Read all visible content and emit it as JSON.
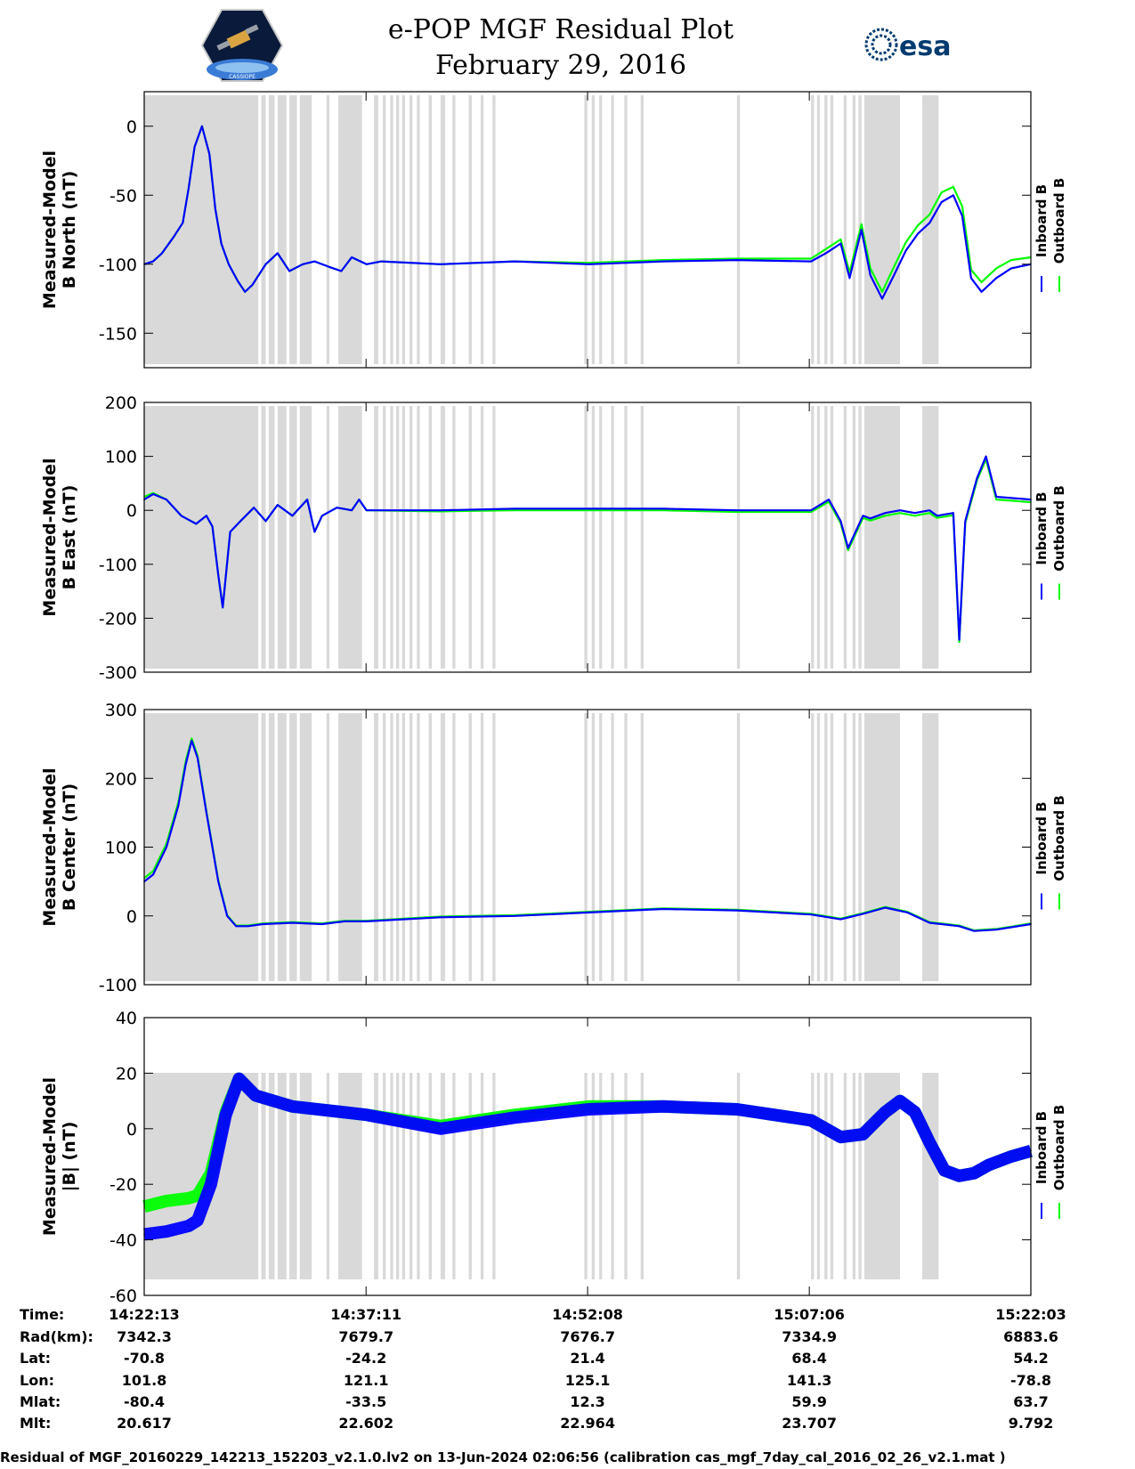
{
  "title": {
    "line1": "e-POP MGF Residual Plot",
    "line2": "February 29, 2016"
  },
  "logos": {
    "left": {
      "icon": "satellite-hexagon-logo",
      "text": "CASSIOPE"
    },
    "right": {
      "icon": "esa-logo",
      "text": "esa",
      "color": "#003b6f"
    }
  },
  "colors": {
    "inboard": "#0000ff",
    "outboard": "#00ff00",
    "shade": "#d9d9d9"
  },
  "legend": {
    "inboard": "Inboard B",
    "outboard": "Outboard B"
  },
  "footer": "Residual of MGF_20160229_142213_152203_v2.1.0.lv2 on 13-Jun-2024 02:06:56 (calibration cas_mgf_7day_cal_2016_02_26_v2.1.mat )",
  "ephemeris": {
    "labels": [
      "Time:",
      "Rad(km):",
      "Lat:",
      "Lon:",
      "Mlat:",
      "Mlt:"
    ],
    "columns": [
      [
        "14:22:13",
        "7342.3",
        "-70.8",
        "101.8",
        "-80.4",
        "20.617"
      ],
      [
        "14:37:11",
        "7679.7",
        "-24.2",
        "121.1",
        "-33.5",
        "22.602"
      ],
      [
        "14:52:08",
        "7676.7",
        "21.4",
        "125.1",
        "12.3",
        "22.964"
      ],
      [
        "15:07:06",
        "7334.9",
        "68.4",
        "141.3",
        "59.9",
        "23.707"
      ],
      [
        "15:22:03",
        "6883.6",
        "54.2",
        "-78.8",
        "63.7",
        "9.792"
      ]
    ]
  },
  "chart_data": {
    "type": "line",
    "x_unit": "minutes since 14:22:13",
    "x_range": [
      0,
      59.83
    ],
    "x_tick_labels": [
      "14:22:13",
      "14:37:11",
      "14:52:08",
      "15:07:06",
      "15:22:03"
    ],
    "shaded_intervals": [
      [
        0,
        7.7
      ],
      [
        7.9,
        8.2
      ],
      [
        8.4,
        8.8
      ],
      [
        9.0,
        9.6
      ],
      [
        9.8,
        10.3
      ],
      [
        10.5,
        11.3
      ],
      [
        12.3,
        12.5
      ],
      [
        13.1,
        14.7
      ],
      [
        15.5,
        15.8
      ],
      [
        16.1,
        16.3
      ],
      [
        16.6,
        16.8
      ],
      [
        17.0,
        17.2
      ],
      [
        17.4,
        17.6
      ],
      [
        17.9,
        18.1
      ],
      [
        18.4,
        18.6
      ],
      [
        19.2,
        19.4
      ],
      [
        20.0,
        20.3
      ],
      [
        20.8,
        21.0
      ],
      [
        21.9,
        22.1
      ],
      [
        22.7,
        22.9
      ],
      [
        23.5,
        23.7
      ],
      [
        29.7,
        29.9
      ],
      [
        30.2,
        30.4
      ],
      [
        30.7,
        30.9
      ],
      [
        31.5,
        31.7
      ],
      [
        32.4,
        32.6
      ],
      [
        33.5,
        33.7
      ],
      [
        40.0,
        40.2
      ],
      [
        45.0,
        45.2
      ],
      [
        45.4,
        45.6
      ],
      [
        45.9,
        46.1
      ],
      [
        46.3,
        46.5
      ],
      [
        47.2,
        47.4
      ],
      [
        47.8,
        48.0
      ],
      [
        48.2,
        48.4
      ],
      [
        48.6,
        51.0
      ],
      [
        52.5,
        53.6
      ]
    ],
    "panels": [
      {
        "ylabel": [
          "Measured-Model",
          "B North (nT)"
        ],
        "ylim": [
          -175,
          25
        ],
        "yticks": [
          0,
          -50,
          -100,
          -150
        ],
        "series": [
          {
            "name": "Inboard B",
            "x": [
              0,
              0.6,
              1.2,
              2.0,
              2.6,
              3.0,
              3.4,
              3.9,
              4.4,
              4.8,
              5.2,
              5.7,
              6.3,
              6.8,
              7.3,
              8.2,
              9.0,
              9.8,
              10.7,
              11.5,
              12.5,
              13.3,
              14.0,
              15.0,
              16.0,
              20.0,
              25.0,
              30.0,
              35.0,
              40.0,
              45.0,
              46.0,
              47.0,
              47.6,
              48.4,
              49.0,
              49.8,
              50.5,
              51.4,
              52.2,
              53.0,
              53.8,
              54.6,
              55.2,
              55.8,
              56.5,
              57.5,
              58.5,
              59.83
            ],
            "y": [
              -100,
              -98,
              -92,
              -80,
              -70,
              -45,
              -15,
              0,
              -20,
              -60,
              -85,
              -100,
              -112,
              -120,
              -115,
              -100,
              -92,
              -105,
              -100,
              -98,
              -102,
              -105,
              -95,
              -100,
              -98,
              -100,
              -98,
              -100,
              -98,
              -97,
              -98,
              -92,
              -85,
              -110,
              -75,
              -108,
              -125,
              -110,
              -90,
              -78,
              -70,
              -55,
              -50,
              -65,
              -110,
              -120,
              -110,
              -103,
              -100
            ]
          },
          {
            "name": "Outboard B",
            "x": [
              0,
              0.6,
              1.2,
              2.0,
              2.6,
              3.0,
              3.4,
              3.9,
              4.4,
              4.8,
              5.2,
              5.7,
              6.3,
              6.8,
              7.3,
              8.2,
              9.0,
              9.8,
              10.7,
              11.5,
              12.5,
              13.3,
              14.0,
              15.0,
              16.0,
              20.0,
              25.0,
              30.0,
              35.0,
              40.0,
              45.0,
              46.0,
              47.0,
              47.6,
              48.4,
              49.0,
              49.8,
              50.5,
              51.4,
              52.2,
              53.0,
              53.8,
              54.6,
              55.2,
              55.8,
              56.5,
              57.5,
              58.5,
              59.83
            ],
            "y": [
              -100,
              -98,
              -92,
              -80,
              -70,
              -45,
              -15,
              0,
              -20,
              -60,
              -85,
              -100,
              -112,
              -120,
              -115,
              -100,
              -92,
              -105,
              -100,
              -98,
              -102,
              -105,
              -95,
              -100,
              -98,
              -100,
              -98,
              -99,
              -97,
              -96,
              -96,
              -89,
              -82,
              -106,
              -71,
              -103,
              -120,
              -104,
              -84,
              -72,
              -64,
              -48,
              -44,
              -58,
              -104,
              -113,
              -103,
              -97,
              -95
            ]
          }
        ]
      },
      {
        "ylabel": [
          "Measured-Model",
          "B East (nT)"
        ],
        "ylim": [
          -300,
          200
        ],
        "yticks": [
          200,
          100,
          0,
          -100,
          -200,
          -300
        ],
        "series": [
          {
            "name": "Inboard B",
            "x": [
              0,
              0.6,
              1.5,
              2.5,
              3.5,
              4.2,
              4.6,
              5.0,
              5.3,
              5.8,
              6.5,
              7.4,
              8.2,
              9.0,
              10.0,
              11.0,
              11.5,
              12.0,
              13.0,
              14.0,
              14.5,
              15.0,
              20.0,
              25.0,
              30.0,
              35.0,
              40.0,
              45.0,
              46.2,
              47.0,
              47.5,
              48.5,
              49.0,
              50.0,
              51.0,
              52.0,
              53.0,
              53.5,
              54.6,
              55.0,
              55.4,
              55.8,
              56.2,
              56.8,
              57.5,
              59.83
            ],
            "y": [
              20,
              30,
              20,
              -10,
              -25,
              -10,
              -30,
              -120,
              -180,
              -40,
              -20,
              5,
              -20,
              10,
              -10,
              20,
              -40,
              -10,
              5,
              0,
              20,
              0,
              0,
              3,
              3,
              3,
              0,
              0,
              20,
              -20,
              -70,
              -10,
              -15,
              -5,
              0,
              -5,
              0,
              -10,
              -5,
              -240,
              -20,
              20,
              60,
              100,
              25,
              20
            ]
          },
          {
            "name": "Outboard B",
            "x": [
              0,
              0.6,
              1.5,
              2.5,
              3.5,
              4.2,
              4.6,
              5.0,
              5.3,
              5.8,
              6.5,
              7.4,
              8.2,
              9.0,
              10.0,
              11.0,
              11.5,
              12.0,
              13.0,
              14.0,
              14.5,
              15.0,
              20.0,
              25.0,
              30.0,
              35.0,
              40.0,
              45.0,
              46.2,
              47.0,
              47.5,
              48.5,
              49.0,
              50.0,
              51.0,
              52.0,
              53.0,
              53.5,
              54.6,
              55.0,
              55.4,
              55.8,
              56.2,
              56.8,
              57.5,
              59.83
            ],
            "y": [
              25,
              32,
              20,
              -10,
              -25,
              -10,
              -30,
              -120,
              -180,
              -40,
              -20,
              5,
              -20,
              10,
              -10,
              20,
              -40,
              -10,
              5,
              0,
              20,
              0,
              -2,
              0,
              0,
              0,
              -3,
              -3,
              16,
              -24,
              -74,
              -14,
              -19,
              -10,
              -5,
              -10,
              -5,
              -14,
              -9,
              -244,
              -24,
              16,
              56,
              95,
              20,
              15
            ]
          }
        ]
      },
      {
        "ylabel": [
          "Measured-Model",
          "B Center (nT)"
        ],
        "ylim": [
          -100,
          300
        ],
        "yticks": [
          300,
          200,
          100,
          0,
          -100
        ],
        "series": [
          {
            "name": "Inboard B",
            "x": [
              0,
              0.6,
              1.5,
              2.3,
              2.8,
              3.2,
              3.6,
              4.2,
              5.0,
              5.6,
              6.2,
              7.0,
              8.0,
              10.0,
              12.0,
              13.5,
              15.0,
              20.0,
              25.0,
              30.0,
              35.0,
              40.0,
              45.0,
              47.0,
              48.5,
              50.0,
              51.5,
              53.0,
              55.0,
              56.0,
              57.5,
              59.83
            ],
            "y": [
              50,
              60,
              100,
              160,
              220,
              255,
              230,
              150,
              50,
              0,
              -15,
              -15,
              -12,
              -10,
              -12,
              -8,
              -8,
              -2,
              0,
              5,
              10,
              8,
              2,
              -5,
              3,
              12,
              5,
              -10,
              -15,
              -22,
              -20,
              -12
            ]
          },
          {
            "name": "Outboard B",
            "x": [
              0,
              0.6,
              1.5,
              2.3,
              2.8,
              3.2,
              3.6,
              4.2,
              5.0,
              5.6,
              6.2,
              7.0,
              8.0,
              10.0,
              12.0,
              13.5,
              15.0,
              20.0,
              25.0,
              30.0,
              35.0,
              40.0,
              45.0,
              47.0,
              48.5,
              50.0,
              51.5,
              53.0,
              55.0,
              56.0,
              57.5,
              59.83
            ],
            "y": [
              55,
              65,
              105,
              165,
              225,
              258,
              233,
              152,
              52,
              1,
              -14,
              -14,
              -11,
              -9,
              -11,
              -7,
              -7,
              -1,
              1,
              6,
              11,
              9,
              3,
              -4,
              4,
              13,
              6,
              -9,
              -14,
              -21,
              -19,
              -11
            ]
          }
        ]
      },
      {
        "ylabel": [
          "Measured-Model",
          "|B| (nT)"
        ],
        "ylim": [
          -60,
          40
        ],
        "yticks": [
          40,
          20,
          0,
          -20,
          -40,
          -60
        ],
        "series": [
          {
            "name": "Inboard B",
            "x": [
              0,
              1.5,
              3.0,
              3.6,
              4.5,
              5.5,
              6.4,
              7.5,
              10.0,
              15.0,
              20.0,
              25.0,
              30.0,
              35.0,
              40.0,
              45.0,
              47.0,
              48.5,
              50.0,
              51.0,
              52.0,
              53.0,
              54.0,
              55.0,
              56.0,
              57.0,
              58.5,
              59.83
            ],
            "y": [
              -38,
              -37,
              -35,
              -33,
              -20,
              5,
              18,
              12,
              8,
              5,
              0,
              4,
              7,
              8,
              7,
              3,
              -3,
              -2,
              6,
              10,
              6,
              -5,
              -15,
              -17,
              -16,
              -13,
              -10,
              -8
            ]
          },
          {
            "name": "Outboard B",
            "x": [
              0,
              1.5,
              3.0,
              3.6,
              4.5,
              5.5,
              6.4,
              7.5,
              10.0,
              15.0,
              20.0,
              25.0,
              30.0,
              35.0,
              40.0,
              45.0,
              47.0,
              48.5,
              50.0,
              51.0,
              52.0,
              53.0,
              54.0,
              55.0,
              56.0,
              57.0,
              58.5,
              59.83
            ],
            "y": [
              -28,
              -26,
              -25,
              -24,
              -16,
              6,
              18,
              12,
              8,
              5,
              1,
              5,
              8,
              8,
              7,
              3,
              -3,
              -2,
              6,
              10,
              6,
              -5,
              -15,
              -17,
              -16,
              -13,
              -10,
              -8
            ]
          }
        ]
      }
    ]
  }
}
